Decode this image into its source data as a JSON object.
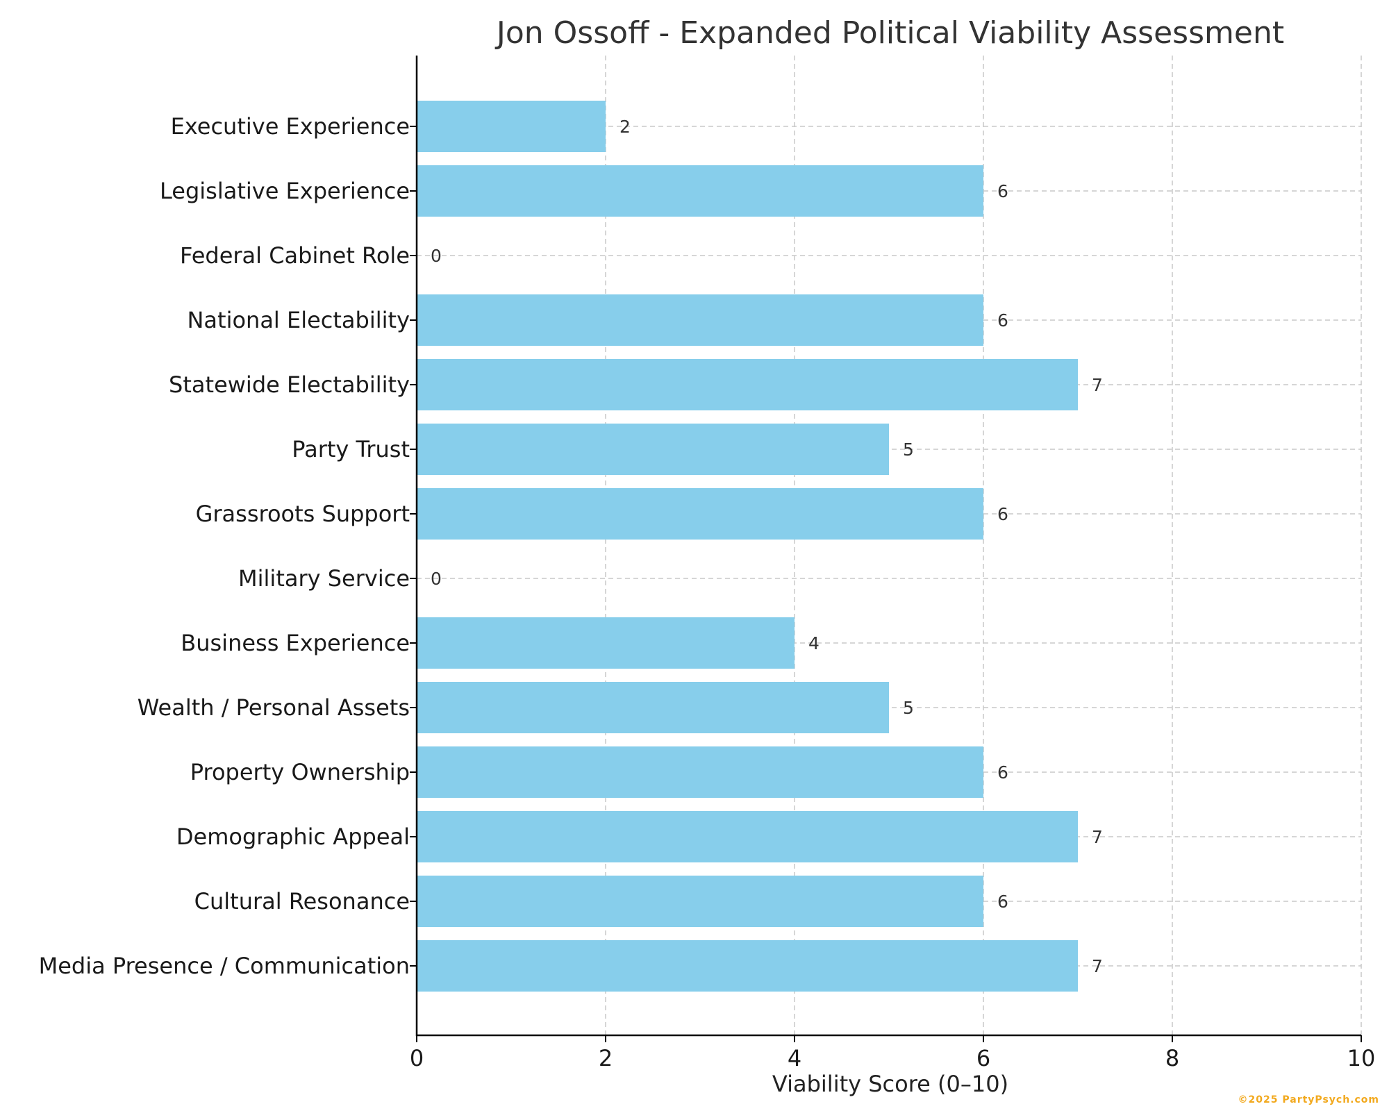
{
  "chart_data": {
    "type": "bar",
    "orientation": "horizontal",
    "title": "Jon Ossoff - Expanded Political Viability Assessment",
    "xlabel": "Viability Score (0–10)",
    "ylabel": "",
    "xlim": [
      0,
      10
    ],
    "x_ticks": [
      0,
      2,
      4,
      6,
      8,
      10
    ],
    "grid": true,
    "bar_color": "#87ceeb",
    "categories": [
      "Executive Experience",
      "Legislative Experience",
      "Federal Cabinet Role",
      "National Electability",
      "Statewide Electability",
      "Party Trust",
      "Grassroots Support",
      "Military Service",
      "Business Experience",
      "Wealth / Personal Assets",
      "Property Ownership",
      "Demographic Appeal",
      "Cultural Resonance",
      "Media Presence / Communication"
    ],
    "values": [
      2,
      6,
      0,
      6,
      7,
      5,
      6,
      0,
      4,
      5,
      6,
      7,
      6,
      7
    ]
  },
  "watermark": "©2025 PartyPsych.com"
}
